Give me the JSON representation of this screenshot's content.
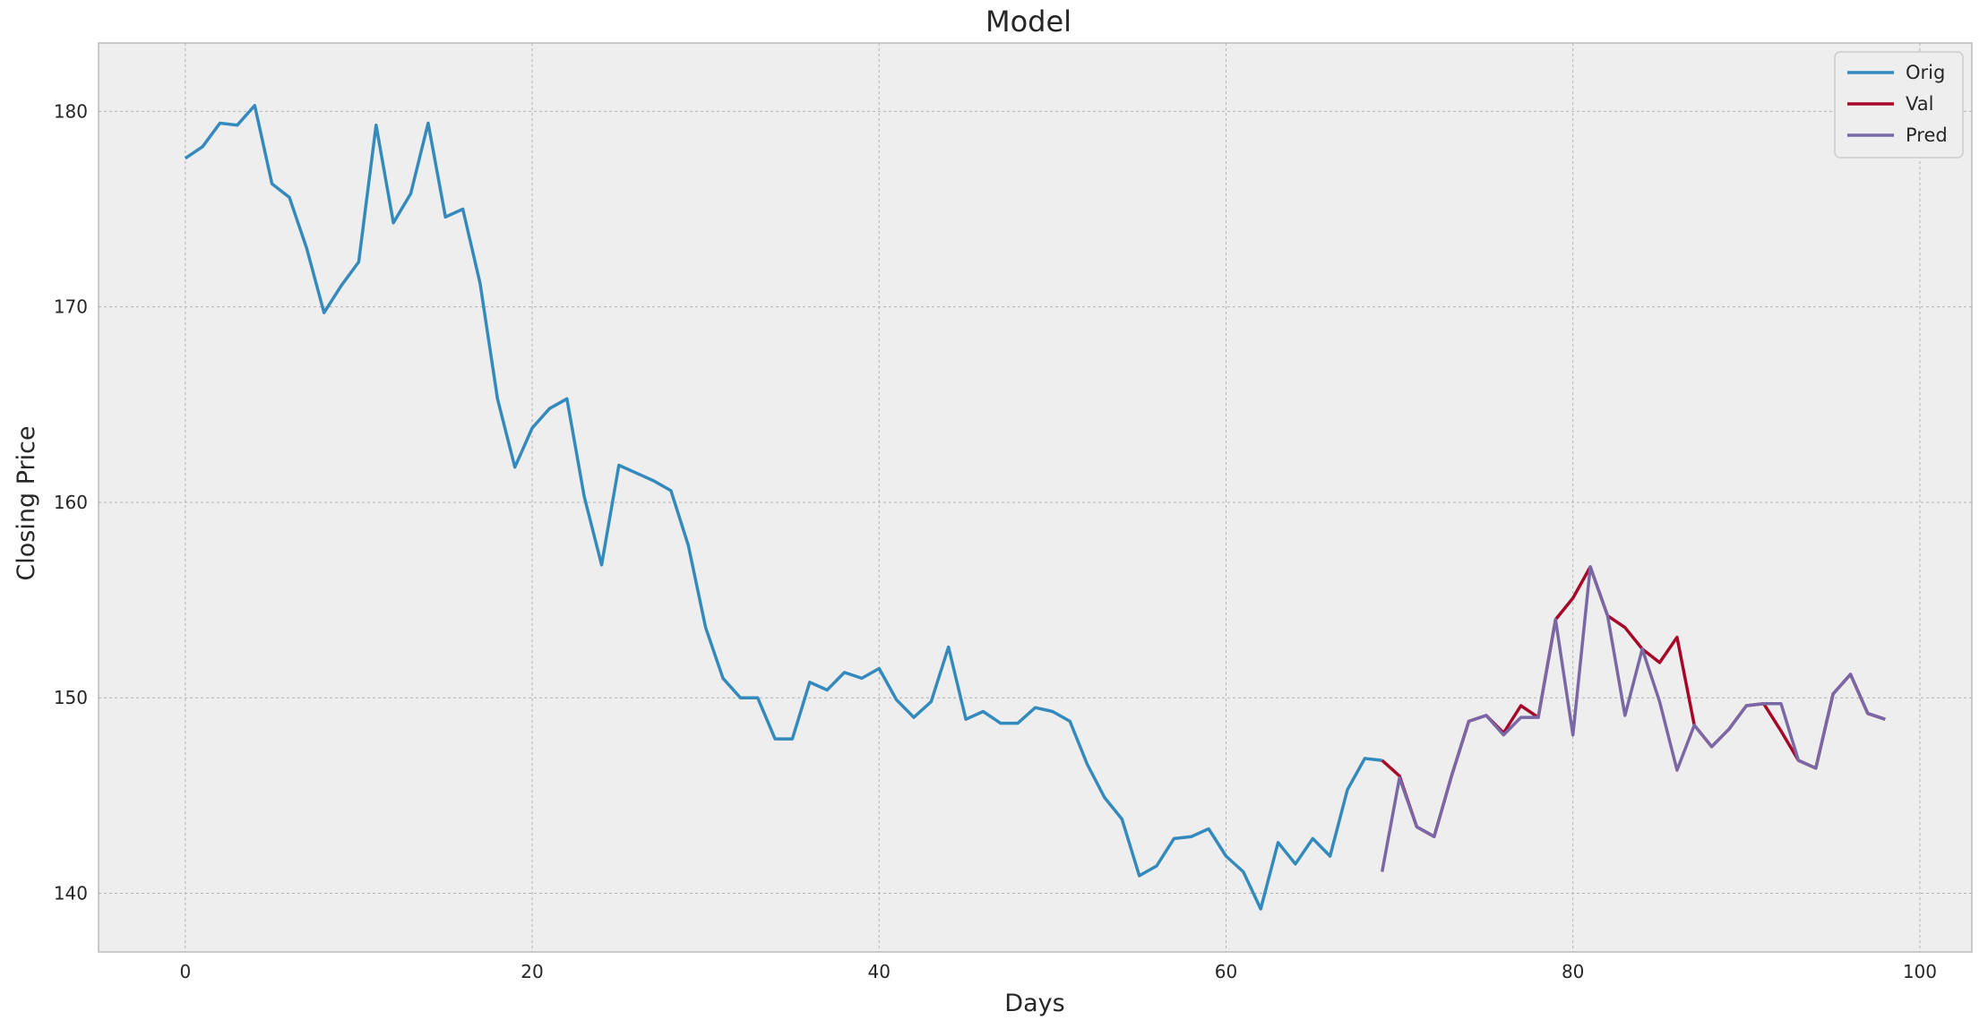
{
  "chart_data": {
    "type": "line",
    "title": "Model",
    "xlabel": "Days",
    "ylabel": "Closing Price",
    "xlim": [
      -5,
      103
    ],
    "ylim": [
      137,
      183.5
    ],
    "xticks": [
      0,
      20,
      40,
      60,
      80,
      100
    ],
    "yticks": [
      140,
      150,
      160,
      170,
      180
    ],
    "grid": true,
    "legend_position": "top-right",
    "series": [
      {
        "name": "Orig",
        "color": "#348ABD",
        "x_start": 0,
        "values": [
          177.6,
          178.2,
          179.4,
          179.3,
          180.3,
          176.3,
          175.6,
          173.0,
          169.7,
          171.1,
          172.3,
          179.3,
          174.3,
          175.8,
          179.4,
          174.6,
          175.0,
          171.2,
          165.3,
          161.8,
          163.8,
          164.8,
          165.3,
          160.3,
          156.8,
          161.9,
          161.5,
          161.1,
          160.6,
          157.8,
          153.6,
          151.0,
          150.0,
          150.0,
          147.9,
          147.9,
          150.8,
          150.4,
          151.3,
          151.0,
          151.5,
          149.9,
          149.0,
          149.8,
          152.6,
          148.9,
          149.3,
          148.7,
          148.7,
          149.5,
          149.3,
          148.8,
          146.6,
          144.9,
          143.8,
          140.9,
          141.4,
          142.8,
          142.9,
          143.3,
          141.9,
          141.1,
          139.2,
          142.6,
          141.5,
          142.8,
          141.9,
          145.3,
          146.9,
          146.8
        ]
      },
      {
        "name": "Val",
        "color": "#A60628",
        "x_start": 69,
        "values": [
          146.8,
          146.0,
          143.4,
          142.9,
          146.0,
          148.8,
          149.1,
          148.2,
          149.6,
          149.0,
          154.0,
          155.1,
          156.7,
          154.2,
          153.6,
          152.5,
          151.8,
          153.1,
          148.6,
          147.5,
          148.4,
          149.6,
          149.7,
          148.3,
          146.8,
          146.4,
          150.2,
          151.2,
          149.2,
          148.9
        ]
      },
      {
        "name": "Pred",
        "color": "#7A68A6",
        "x_start": 69,
        "values": [
          141.1,
          145.9,
          143.4,
          142.9,
          146.0,
          148.8,
          149.1,
          148.1,
          149.0,
          149.0,
          154.0,
          148.1,
          156.7,
          154.2,
          149.1,
          152.5,
          149.8,
          146.3,
          148.6,
          147.5,
          148.4,
          149.6,
          149.7,
          149.7,
          146.8,
          146.4,
          150.2,
          151.2,
          149.2,
          148.9
        ]
      }
    ]
  }
}
